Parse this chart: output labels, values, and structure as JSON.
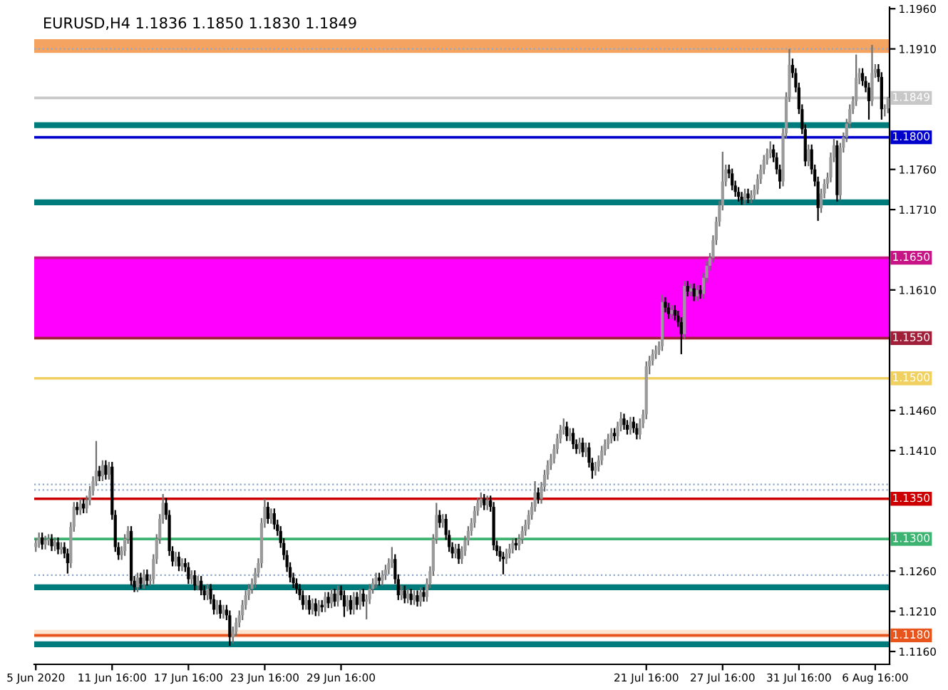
{
  "chart_data": {
    "type": "candlestick",
    "title": "EURUSD,H4 1.1836 1.1850 1.1830 1.1849",
    "categories": [
      "5 Jun 2020",
      null,
      null,
      null,
      null,
      null,
      null,
      null,
      null,
      null,
      null,
      null,
      null,
      null,
      null,
      null,
      null,
      null,
      null,
      null,
      null,
      null,
      null,
      null,
      "11 Jun 16:00",
      null,
      null,
      null,
      null,
      null,
      null,
      null,
      null,
      null,
      null,
      null,
      null,
      null,
      null,
      null,
      null,
      null,
      null,
      null,
      null,
      null,
      null,
      null,
      "17 Jun 16:00",
      null,
      null,
      null,
      null,
      null,
      null,
      null,
      null,
      null,
      null,
      null,
      null,
      null,
      null,
      null,
      null,
      null,
      null,
      null,
      null,
      null,
      null,
      null,
      "23 Jun 16:00",
      null,
      null,
      null,
      null,
      null,
      null,
      null,
      null,
      null,
      null,
      null,
      null,
      null,
      null,
      null,
      null,
      null,
      null,
      null,
      null,
      null,
      null,
      null,
      "29 Jun 16:00",
      null,
      null,
      null,
      null,
      null,
      null,
      null,
      null,
      null,
      null,
      null,
      null,
      null,
      null,
      null,
      null,
      null,
      null,
      null,
      null,
      null,
      null,
      null,
      null,
      null,
      null,
      null,
      null,
      null,
      null,
      null,
      null,
      null,
      null,
      null,
      null,
      null,
      null,
      null,
      null,
      null,
      null,
      null,
      null,
      null,
      null,
      null,
      null,
      null,
      null,
      null,
      null,
      null,
      null,
      null,
      null,
      null,
      null,
      null,
      null,
      null,
      null,
      null,
      null,
      null,
      null,
      null,
      null,
      null,
      null,
      null,
      null,
      null,
      null,
      null,
      null,
      null,
      null,
      null,
      null,
      null,
      null,
      null,
      null,
      null,
      null,
      null,
      null,
      null,
      null,
      null,
      null,
      null,
      null,
      null,
      "21 Jul 16:00",
      null,
      null,
      null,
      null,
      null,
      null,
      null,
      null,
      null,
      null,
      null,
      null,
      null,
      null,
      null,
      null,
      null,
      null,
      null,
      null,
      null,
      null,
      null,
      "27 Jul 16:00",
      null,
      null,
      null,
      null,
      null,
      null,
      null,
      null,
      null,
      null,
      null,
      null,
      null,
      null,
      null,
      null,
      null,
      null,
      null,
      null,
      null,
      null,
      null,
      "31 Jul 16:00",
      null,
      null,
      null,
      null,
      null,
      null,
      null,
      null,
      null,
      null,
      null,
      null,
      null,
      null,
      null,
      null,
      null,
      null,
      null,
      null,
      null,
      null,
      null,
      "6 Aug 16:00",
      null,
      null,
      null,
      null
    ],
    "ohlc": [
      [
        1.129,
        1.1301,
        1.1284,
        1.1295
      ],
      [
        1.1295,
        1.1308,
        1.1289,
        1.1302
      ],
      [
        1.1302,
        1.1308,
        1.1287,
        1.1293
      ],
      [
        1.1293,
        1.1304,
        1.1287,
        1.1298
      ],
      [
        1.1298,
        1.1306,
        1.1292,
        1.13
      ],
      [
        1.13,
        1.1306,
        1.1285,
        1.1291
      ],
      [
        1.1291,
        1.1302,
        1.1285,
        1.1296
      ],
      [
        1.1296,
        1.1302,
        1.1281,
        1.1287
      ],
      [
        1.1287,
        1.1296,
        1.1281,
        1.129
      ],
      [
        1.129,
        1.1296,
        1.1276,
        1.1282
      ],
      [
        1.1282,
        1.1288,
        1.1257,
        1.127
      ],
      [
        1.127,
        1.1321,
        1.1264,
        1.1315
      ],
      [
        1.1315,
        1.1346,
        1.1309,
        1.134
      ],
      [
        1.134,
        1.1346,
        1.133,
        1.1336
      ],
      [
        1.1336,
        1.135,
        1.133,
        1.1344
      ],
      [
        1.1344,
        1.135,
        1.1332,
        1.1338
      ],
      [
        1.1338,
        1.1354,
        1.1332,
        1.1348
      ],
      [
        1.1348,
        1.1366,
        1.1342,
        1.136
      ],
      [
        1.136,
        1.1378,
        1.1354,
        1.1372
      ],
      [
        1.1372,
        1.1422,
        1.1366,
        1.1385
      ],
      [
        1.1385,
        1.1391,
        1.1372,
        1.1378
      ],
      [
        1.1378,
        1.1398,
        1.1372,
        1.1392
      ],
      [
        1.1392,
        1.1398,
        1.1374,
        1.138
      ],
      [
        1.138,
        1.1396,
        1.1374,
        1.139
      ],
      [
        1.139,
        1.1396,
        1.1324,
        1.133
      ],
      [
        1.133,
        1.1336,
        1.1284,
        1.129
      ],
      [
        1.129,
        1.1296,
        1.1274,
        1.128
      ],
      [
        1.128,
        1.1291,
        1.1274,
        1.1285
      ],
      [
        1.1285,
        1.1306,
        1.1279,
        1.13
      ],
      [
        1.13,
        1.1316,
        1.1294,
        1.131
      ],
      [
        1.131,
        1.1316,
        1.1242,
        1.1248
      ],
      [
        1.1248,
        1.1254,
        1.1234,
        1.124
      ],
      [
        1.124,
        1.1258,
        1.1234,
        1.1252
      ],
      [
        1.1252,
        1.1258,
        1.1238,
        1.1244
      ],
      [
        1.1244,
        1.1262,
        1.1238,
        1.1256
      ],
      [
        1.1256,
        1.1262,
        1.1242,
        1.1248
      ],
      [
        1.1248,
        1.1256,
        1.1242,
        1.125
      ],
      [
        1.125,
        1.1281,
        1.1244,
        1.1275
      ],
      [
        1.1275,
        1.1306,
        1.1269,
        1.13
      ],
      [
        1.13,
        1.1331,
        1.1294,
        1.1325
      ],
      [
        1.1325,
        1.1356,
        1.1319,
        1.1345
      ],
      [
        1.1345,
        1.1351,
        1.1324,
        1.133
      ],
      [
        1.133,
        1.1336,
        1.1279,
        1.1285
      ],
      [
        1.1285,
        1.1291,
        1.1266,
        1.1272
      ],
      [
        1.1272,
        1.1284,
        1.1266,
        1.1278
      ],
      [
        1.1278,
        1.1284,
        1.126,
        1.1266
      ],
      [
        1.1266,
        1.1276,
        1.126,
        1.127
      ],
      [
        1.127,
        1.1276,
        1.1259,
        1.1265
      ],
      [
        1.1265,
        1.1271,
        1.1244,
        1.125
      ],
      [
        1.125,
        1.1261,
        1.1244,
        1.1255
      ],
      [
        1.1255,
        1.1261,
        1.1236,
        1.1242
      ],
      [
        1.1242,
        1.1254,
        1.1236,
        1.1248
      ],
      [
        1.1248,
        1.1254,
        1.123,
        1.1236
      ],
      [
        1.1236,
        1.1242,
        1.1224,
        1.123
      ],
      [
        1.123,
        1.1244,
        1.1224,
        1.1238
      ],
      [
        1.1238,
        1.1244,
        1.1219,
        1.1225
      ],
      [
        1.1225,
        1.1231,
        1.1206,
        1.1212
      ],
      [
        1.1212,
        1.1224,
        1.1206,
        1.1218
      ],
      [
        1.1218,
        1.1224,
        1.1201,
        1.1207
      ],
      [
        1.1207,
        1.1218,
        1.1201,
        1.1212
      ],
      [
        1.1212,
        1.1218,
        1.1199,
        1.1205
      ],
      [
        1.1205,
        1.1211,
        1.1167,
        1.1178
      ],
      [
        1.1178,
        1.1191,
        1.117,
        1.1185
      ],
      [
        1.1185,
        1.1202,
        1.1179,
        1.1196
      ],
      [
        1.1196,
        1.1211,
        1.119,
        1.1205
      ],
      [
        1.1205,
        1.1224,
        1.1199,
        1.1218
      ],
      [
        1.1218,
        1.1236,
        1.1212,
        1.123
      ],
      [
        1.123,
        1.1244,
        1.1224,
        1.1238
      ],
      [
        1.1238,
        1.1251,
        1.1232,
        1.1245
      ],
      [
        1.1245,
        1.1264,
        1.1239,
        1.1258
      ],
      [
        1.1258,
        1.1276,
        1.1252,
        1.127
      ],
      [
        1.127,
        1.1326,
        1.1264,
        1.132
      ],
      [
        1.132,
        1.135,
        1.1314,
        1.134
      ],
      [
        1.134,
        1.1346,
        1.1319,
        1.1325
      ],
      [
        1.1325,
        1.1338,
        1.1319,
        1.1332
      ],
      [
        1.1332,
        1.1338,
        1.1312,
        1.1318
      ],
      [
        1.1318,
        1.1324,
        1.1304,
        1.131
      ],
      [
        1.131,
        1.1316,
        1.1289,
        1.1295
      ],
      [
        1.1295,
        1.1301,
        1.1274,
        1.128
      ],
      [
        1.128,
        1.1286,
        1.1259,
        1.1265
      ],
      [
        1.1265,
        1.1271,
        1.1246,
        1.1252
      ],
      [
        1.1252,
        1.1258,
        1.1239,
        1.1245
      ],
      [
        1.1245,
        1.1251,
        1.1232,
        1.1238
      ],
      [
        1.1238,
        1.1244,
        1.1224,
        1.123
      ],
      [
        1.123,
        1.1236,
        1.1212,
        1.1218
      ],
      [
        1.1218,
        1.123,
        1.1212,
        1.1224
      ],
      [
        1.1224,
        1.123,
        1.1206,
        1.1212
      ],
      [
        1.1212,
        1.1226,
        1.1206,
        1.122
      ],
      [
        1.122,
        1.1226,
        1.1204,
        1.121
      ],
      [
        1.121,
        1.1224,
        1.1204,
        1.1218
      ],
      [
        1.1218,
        1.1224,
        1.1209,
        1.1215
      ],
      [
        1.1215,
        1.1234,
        1.1209,
        1.1228
      ],
      [
        1.1228,
        1.1234,
        1.1214,
        1.122
      ],
      [
        1.122,
        1.1238,
        1.1214,
        1.1232
      ],
      [
        1.1232,
        1.1238,
        1.1216,
        1.1222
      ],
      [
        1.1222,
        1.1242,
        1.1216,
        1.1236
      ],
      [
        1.1236,
        1.1242,
        1.1224,
        1.123
      ],
      [
        1.123,
        1.1236,
        1.1203,
        1.1216
      ],
      [
        1.1216,
        1.123,
        1.121,
        1.1224
      ],
      [
        1.1224,
        1.123,
        1.1206,
        1.1212
      ],
      [
        1.1212,
        1.1234,
        1.1206,
        1.1228
      ],
      [
        1.1228,
        1.1234,
        1.1212,
        1.1218
      ],
      [
        1.1218,
        1.1238,
        1.1212,
        1.1232
      ],
      [
        1.1232,
        1.1238,
        1.1216,
        1.1222
      ],
      [
        1.1222,
        1.1231,
        1.12,
        1.1225
      ],
      [
        1.1225,
        1.1244,
        1.1219,
        1.1238
      ],
      [
        1.1238,
        1.1251,
        1.1232,
        1.1245
      ],
      [
        1.1245,
        1.1258,
        1.1239,
        1.1252
      ],
      [
        1.1252,
        1.1258,
        1.1242,
        1.1248
      ],
      [
        1.1248,
        1.1261,
        1.1242,
        1.1255
      ],
      [
        1.1255,
        1.1268,
        1.1249,
        1.1262
      ],
      [
        1.1262,
        1.1276,
        1.1256,
        1.127
      ],
      [
        1.127,
        1.129,
        1.1264,
        1.1275
      ],
      [
        1.1275,
        1.1281,
        1.1244,
        1.125
      ],
      [
        1.125,
        1.1256,
        1.1224,
        1.123
      ],
      [
        1.123,
        1.1242,
        1.1224,
        1.1236
      ],
      [
        1.1236,
        1.1242,
        1.122,
        1.1226
      ],
      [
        1.1226,
        1.1238,
        1.122,
        1.1232
      ],
      [
        1.1232,
        1.1238,
        1.1218,
        1.1224
      ],
      [
        1.1224,
        1.1236,
        1.1218,
        1.123
      ],
      [
        1.123,
        1.1236,
        1.1216,
        1.1222
      ],
      [
        1.1222,
        1.124,
        1.1216,
        1.1234
      ],
      [
        1.1234,
        1.124,
        1.1222,
        1.1228
      ],
      [
        1.1228,
        1.1251,
        1.1222,
        1.1245
      ],
      [
        1.1245,
        1.1266,
        1.1239,
        1.126
      ],
      [
        1.126,
        1.1306,
        1.1254,
        1.13
      ],
      [
        1.13,
        1.1345,
        1.1294,
        1.133
      ],
      [
        1.133,
        1.1336,
        1.1314,
        1.132
      ],
      [
        1.132,
        1.1331,
        1.1314,
        1.1325
      ],
      [
        1.1325,
        1.1331,
        1.1299,
        1.1305
      ],
      [
        1.1305,
        1.1311,
        1.1284,
        1.129
      ],
      [
        1.129,
        1.1296,
        1.1276,
        1.1282
      ],
      [
        1.1282,
        1.1294,
        1.1276,
        1.1288
      ],
      [
        1.1288,
        1.1294,
        1.1269,
        1.1275
      ],
      [
        1.1275,
        1.1291,
        1.1269,
        1.1285
      ],
      [
        1.1285,
        1.1304,
        1.1279,
        1.1298
      ],
      [
        1.1298,
        1.1316,
        1.1292,
        1.131
      ],
      [
        1.131,
        1.1326,
        1.1304,
        1.132
      ],
      [
        1.132,
        1.1341,
        1.1314,
        1.1335
      ],
      [
        1.1335,
        1.1351,
        1.1329,
        1.1345
      ],
      [
        1.1345,
        1.1358,
        1.1339,
        1.135
      ],
      [
        1.135,
        1.1356,
        1.1336,
        1.1342
      ],
      [
        1.1342,
        1.1354,
        1.1336,
        1.1348
      ],
      [
        1.1348,
        1.1354,
        1.1334,
        1.134
      ],
      [
        1.134,
        1.1346,
        1.1286,
        1.1292
      ],
      [
        1.1292,
        1.1298,
        1.1279,
        1.1285
      ],
      [
        1.1285,
        1.1291,
        1.1272,
        1.1278
      ],
      [
        1.1278,
        1.1284,
        1.1256,
        1.1275
      ],
      [
        1.1275,
        1.1288,
        1.1269,
        1.1282
      ],
      [
        1.1282,
        1.1294,
        1.1276,
        1.1288
      ],
      [
        1.1288,
        1.1301,
        1.1282,
        1.1295
      ],
      [
        1.1295,
        1.1301,
        1.1286,
        1.1292
      ],
      [
        1.1292,
        1.1306,
        1.1286,
        1.13
      ],
      [
        1.13,
        1.1316,
        1.1294,
        1.131
      ],
      [
        1.131,
        1.1324,
        1.1304,
        1.1318
      ],
      [
        1.1318,
        1.1336,
        1.1312,
        1.133
      ],
      [
        1.133,
        1.1346,
        1.1324,
        1.134
      ],
      [
        1.134,
        1.1372,
        1.1334,
        1.1358
      ],
      [
        1.1358,
        1.1364,
        1.1344,
        1.135
      ],
      [
        1.135,
        1.1371,
        1.1344,
        1.1365
      ],
      [
        1.1365,
        1.1386,
        1.1359,
        1.138
      ],
      [
        1.138,
        1.1398,
        1.1374,
        1.1392
      ],
      [
        1.1392,
        1.1406,
        1.1386,
        1.14
      ],
      [
        1.14,
        1.1418,
        1.1394,
        1.1412
      ],
      [
        1.1412,
        1.1431,
        1.1406,
        1.1425
      ],
      [
        1.1425,
        1.1442,
        1.1419,
        1.1436
      ],
      [
        1.1436,
        1.145,
        1.143,
        1.144
      ],
      [
        1.144,
        1.1446,
        1.1422,
        1.1428
      ],
      [
        1.1428,
        1.1438,
        1.1422,
        1.1432
      ],
      [
        1.1432,
        1.1438,
        1.1412,
        1.1418
      ],
      [
        1.1418,
        1.1424,
        1.1406,
        1.1412
      ],
      [
        1.1412,
        1.1426,
        1.1406,
        1.142
      ],
      [
        1.142,
        1.1426,
        1.1402,
        1.1408
      ],
      [
        1.1408,
        1.142,
        1.1402,
        1.1414
      ],
      [
        1.1414,
        1.142,
        1.1389,
        1.1395
      ],
      [
        1.1395,
        1.1401,
        1.1375,
        1.1385
      ],
      [
        1.1385,
        1.1396,
        1.1379,
        1.139
      ],
      [
        1.139,
        1.1404,
        1.1384,
        1.1398
      ],
      [
        1.1398,
        1.1416,
        1.1392,
        1.141
      ],
      [
        1.141,
        1.1424,
        1.1404,
        1.1418
      ],
      [
        1.1418,
        1.1431,
        1.1412,
        1.1425
      ],
      [
        1.1425,
        1.1438,
        1.1419,
        1.1432
      ],
      [
        1.1432,
        1.1438,
        1.1422,
        1.1428
      ],
      [
        1.1428,
        1.1446,
        1.1422,
        1.144
      ],
      [
        1.144,
        1.1458,
        1.1434,
        1.145
      ],
      [
        1.145,
        1.1456,
        1.1436,
        1.1442
      ],
      [
        1.1442,
        1.1448,
        1.143,
        1.1436
      ],
      [
        1.1436,
        1.1452,
        1.143,
        1.1446
      ],
      [
        1.1446,
        1.1452,
        1.1432,
        1.1438
      ],
      [
        1.1438,
        1.1444,
        1.1424,
        1.143
      ],
      [
        1.143,
        1.145,
        1.1424,
        1.1444
      ],
      [
        1.1444,
        1.1461,
        1.1438,
        1.1455
      ],
      [
        1.1455,
        1.1521,
        1.1449,
        1.1515
      ],
      [
        1.1515,
        1.1528,
        1.1505,
        1.1522
      ],
      [
        1.1522,
        1.1536,
        1.1516,
        1.153
      ],
      [
        1.153,
        1.1541,
        1.1524,
        1.1535
      ],
      [
        1.1535,
        1.1546,
        1.1529,
        1.154
      ],
      [
        1.154,
        1.1604,
        1.1534,
        1.1595
      ],
      [
        1.1595,
        1.1601,
        1.1582,
        1.1588
      ],
      [
        1.1588,
        1.1594,
        1.1574,
        1.158
      ],
      [
        1.158,
        1.1591,
        1.1574,
        1.1585
      ],
      [
        1.1585,
        1.1591,
        1.1572,
        1.1578
      ],
      [
        1.1578,
        1.1584,
        1.1564,
        1.157
      ],
      [
        1.157,
        1.1576,
        1.153,
        1.1555
      ],
      [
        1.1555,
        1.1621,
        1.1549,
        1.1615
      ],
      [
        1.1615,
        1.1621,
        1.1602,
        1.1608
      ],
      [
        1.1608,
        1.1618,
        1.1602,
        1.1612
      ],
      [
        1.1612,
        1.1618,
        1.1596,
        1.1602
      ],
      [
        1.1602,
        1.1616,
        1.1596,
        1.161
      ],
      [
        1.161,
        1.1616,
        1.1599,
        1.1605
      ],
      [
        1.1605,
        1.1631,
        1.1599,
        1.1625
      ],
      [
        1.1625,
        1.1646,
        1.1619,
        1.164
      ],
      [
        1.164,
        1.1656,
        1.1634,
        1.165
      ],
      [
        1.165,
        1.1678,
        1.1644,
        1.1672
      ],
      [
        1.1672,
        1.1701,
        1.1666,
        1.1695
      ],
      [
        1.1695,
        1.1721,
        1.1689,
        1.1715
      ],
      [
        1.1715,
        1.1782,
        1.1709,
        1.1745
      ],
      [
        1.1745,
        1.1766,
        1.1739,
        1.176
      ],
      [
        1.176,
        1.1766,
        1.1749,
        1.1755
      ],
      [
        1.1755,
        1.1761,
        1.1734,
        1.174
      ],
      [
        1.174,
        1.1746,
        1.1726,
        1.1732
      ],
      [
        1.1732,
        1.1738,
        1.172,
        1.1726
      ],
      [
        1.1726,
        1.1732,
        1.1716,
        1.1722
      ],
      [
        1.1722,
        1.1736,
        1.1716,
        1.173
      ],
      [
        1.173,
        1.1736,
        1.1718,
        1.1724
      ],
      [
        1.1724,
        1.1734,
        1.1718,
        1.1728
      ],
      [
        1.1728,
        1.1741,
        1.1722,
        1.1735
      ],
      [
        1.1735,
        1.1754,
        1.1729,
        1.1748
      ],
      [
        1.1748,
        1.1766,
        1.1742,
        1.176
      ],
      [
        1.176,
        1.1778,
        1.1754,
        1.1772
      ],
      [
        1.1772,
        1.1786,
        1.1766,
        1.178
      ],
      [
        1.178,
        1.1795,
        1.1774,
        1.1785
      ],
      [
        1.1785,
        1.1791,
        1.1769,
        1.1775
      ],
      [
        1.1775,
        1.1781,
        1.1754,
        1.176
      ],
      [
        1.176,
        1.1766,
        1.1736,
        1.1745
      ],
      [
        1.1745,
        1.1811,
        1.1739,
        1.1805
      ],
      [
        1.1805,
        1.1856,
        1.1799,
        1.185
      ],
      [
        1.185,
        1.191,
        1.1844,
        1.189
      ],
      [
        1.189,
        1.1898,
        1.1874,
        1.188
      ],
      [
        1.188,
        1.1886,
        1.1856,
        1.1862
      ],
      [
        1.1862,
        1.1868,
        1.1829,
        1.1835
      ],
      [
        1.1835,
        1.1841,
        1.1804,
        1.181
      ],
      [
        1.181,
        1.1816,
        1.1764,
        1.177
      ],
      [
        1.177,
        1.1791,
        1.1764,
        1.1785
      ],
      [
        1.1785,
        1.1791,
        1.1754,
        1.176
      ],
      [
        1.176,
        1.1766,
        1.1739,
        1.1745
      ],
      [
        1.1745,
        1.1751,
        1.1696,
        1.1712
      ],
      [
        1.1712,
        1.1736,
        1.1706,
        1.173
      ],
      [
        1.173,
        1.1748,
        1.1724,
        1.1742
      ],
      [
        1.1742,
        1.1756,
        1.1736,
        1.175
      ],
      [
        1.175,
        1.1781,
        1.1744,
        1.1775
      ],
      [
        1.1775,
        1.1798,
        1.1769,
        1.179
      ],
      [
        1.179,
        1.1796,
        1.172,
        1.1728
      ],
      [
        1.1728,
        1.1793,
        1.1722,
        1.1787
      ],
      [
        1.1787,
        1.1806,
        1.1781,
        1.18
      ],
      [
        1.18,
        1.1823,
        1.1794,
        1.1817
      ],
      [
        1.1817,
        1.1841,
        1.1811,
        1.1835
      ],
      [
        1.1835,
        1.1851,
        1.1829,
        1.1845
      ],
      [
        1.1845,
        1.1903,
        1.1839,
        1.1874
      ],
      [
        1.1874,
        1.1886,
        1.1866,
        1.188
      ],
      [
        1.188,
        1.1886,
        1.1864,
        1.187
      ],
      [
        1.187,
        1.1876,
        1.1856,
        1.1862
      ],
      [
        1.1862,
        1.1868,
        1.1822,
        1.1845
      ],
      [
        1.1845,
        1.1915,
        1.1839,
        1.188
      ],
      [
        1.188,
        1.1891,
        1.1874,
        1.1885
      ],
      [
        1.1885,
        1.1891,
        1.1869,
        1.1875
      ],
      [
        1.1875,
        1.1881,
        1.1822,
        1.1835
      ],
      [
        1.1835,
        1.1841,
        1.1826,
        1.1836
      ],
      [
        1.1836,
        1.185,
        1.183,
        1.1849
      ]
    ],
    "ylim": [
      1.1144,
      1.1962
    ],
    "yticks": [
      {
        "value": 1.116,
        "label": "1.1160"
      },
      {
        "value": 1.121,
        "label": "1.1210"
      },
      {
        "value": 1.126,
        "label": "1.1260"
      },
      {
        "value": 1.141,
        "label": "1.1410"
      },
      {
        "value": 1.146,
        "label": "1.1460"
      },
      {
        "value": 1.161,
        "label": "1.1610"
      },
      {
        "value": 1.171,
        "label": "1.1710"
      },
      {
        "value": 1.176,
        "label": "1.1760"
      },
      {
        "value": 1.191,
        "label": "1.1910"
      },
      {
        "value": 1.196,
        "label": "1.1960"
      }
    ],
    "bands": [
      {
        "axis": "y",
        "from": 1.155,
        "to": 1.165,
        "color": "#ff00ff"
      },
      {
        "axis": "y",
        "from": 1.1905,
        "to": 1.1922,
        "color": "#f4a460"
      },
      {
        "axis": "y",
        "from": 1.1177,
        "to": 1.1187,
        "color": "#fde5d2"
      }
    ],
    "ref_lines": [
      {
        "axis": "y",
        "value": 1.1849,
        "label": "1.1849",
        "color": "#c8c8c8",
        "line_style": "solid"
      },
      {
        "axis": "y",
        "value": 1.191,
        "color": "#8fa8c8",
        "line_style": "dotted"
      },
      {
        "axis": "y",
        "value": 1.1815,
        "color": "#007b7b",
        "line_style": "solid"
      },
      {
        "axis": "y",
        "value": 1.18,
        "label": "1.1800",
        "color": "#0000cc",
        "line_style": "solid"
      },
      {
        "axis": "y",
        "value": 1.1719,
        "color": "#007b7b",
        "line_style": "solid"
      },
      {
        "axis": "y",
        "value": 1.165,
        "label": "1.1650",
        "color": "#c71585",
        "line_style": "solid"
      },
      {
        "axis": "y",
        "value": 1.155,
        "label": "1.1550",
        "color": "#a0203a",
        "line_style": "solid"
      },
      {
        "axis": "y",
        "value": 1.15,
        "label": "1.1500",
        "color": "#f0d060",
        "line_style": "solid"
      },
      {
        "axis": "y",
        "value": 1.1368,
        "color": "#8fa8c8",
        "line_style": "dotted"
      },
      {
        "axis": "y",
        "value": 1.1361,
        "color": "#8fa8c8",
        "line_style": "dotted"
      },
      {
        "axis": "y",
        "value": 1.135,
        "label": "1.1350",
        "color": "#cc0000",
        "line_style": "solid"
      },
      {
        "axis": "y",
        "value": 1.13,
        "label": "1.1300",
        "color": "#3cb371",
        "line_style": "solid"
      },
      {
        "axis": "y",
        "value": 1.1255,
        "color": "#8fa8c8",
        "line_style": "dotted"
      },
      {
        "axis": "y",
        "value": 1.124,
        "color": "#007b7b",
        "line_style": "solid"
      },
      {
        "axis": "y",
        "value": 1.118,
        "label": "1.1180",
        "color": "#e8551c",
        "line_style": "solid"
      },
      {
        "axis": "y",
        "value": 1.1169,
        "color": "#007b7b",
        "line_style": "solid"
      }
    ],
    "grid": false,
    "legend": false
  }
}
